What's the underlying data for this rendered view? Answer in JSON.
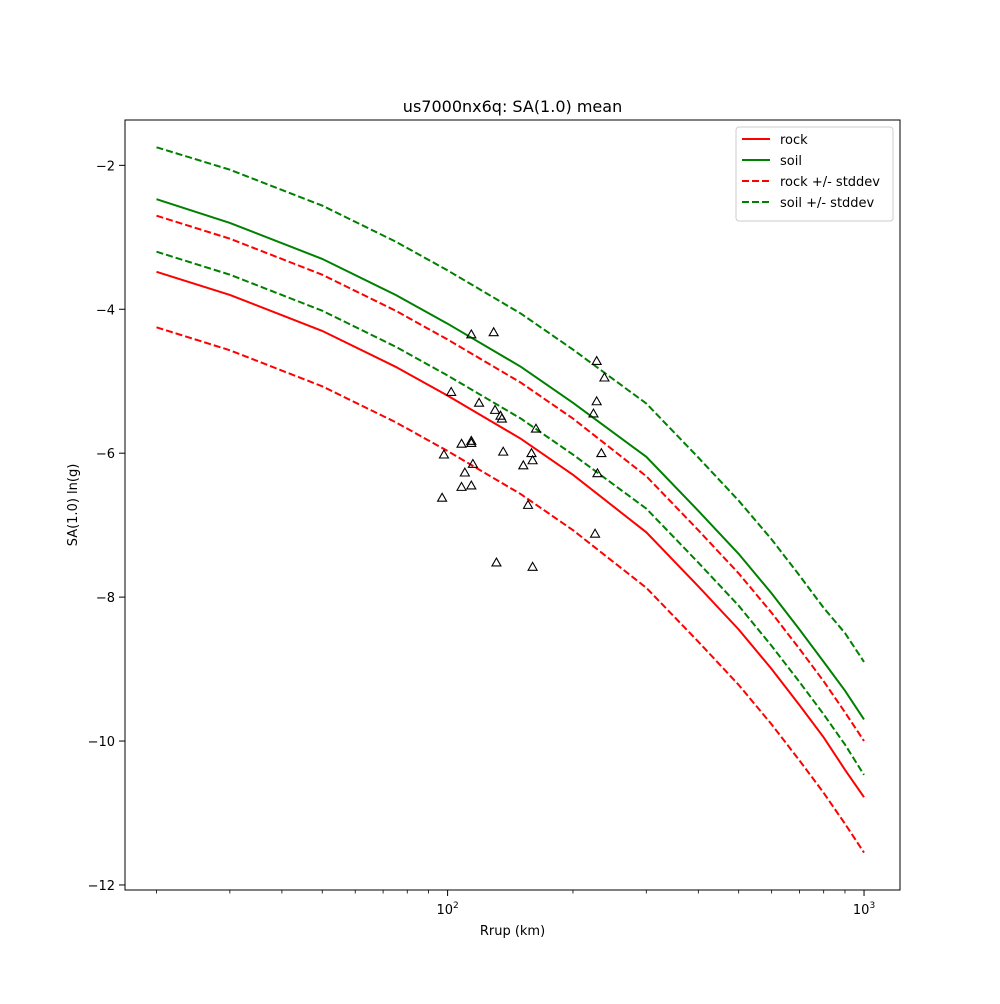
{
  "chart_data": {
    "type": "line",
    "title": "us7000nx6q: SA(1.0) mean",
    "xlabel": "Rrup (km)",
    "ylabel": "SA(1.0) ln(g)",
    "xscale": "log",
    "xlim": [
      16.8,
      1220
    ],
    "ylim": [
      -12.07,
      -1.37
    ],
    "x_ticks": [
      {
        "value": 100,
        "base": "10",
        "exp": "2"
      },
      {
        "value": 1000,
        "base": "10",
        "exp": "3"
      }
    ],
    "y_ticks": [
      {
        "value": -2,
        "label": "−2"
      },
      {
        "value": -4,
        "label": "−4"
      },
      {
        "value": -6,
        "label": "−6"
      },
      {
        "value": -8,
        "label": "−8"
      },
      {
        "value": -10,
        "label": "−10"
      },
      {
        "value": -12,
        "label": "−12"
      }
    ],
    "grid": false,
    "legend_position": "top-right",
    "series": [
      {
        "name": "rock",
        "color": "#ff0000",
        "style": "solid",
        "x": [
          20,
          30,
          50,
          75,
          100,
          150,
          200,
          300,
          400,
          500,
          600,
          700,
          800,
          900,
          1000
        ],
        "y": [
          -3.48,
          -3.8,
          -4.3,
          -4.8,
          -5.2,
          -5.8,
          -6.3,
          -7.1,
          -7.85,
          -8.45,
          -9.0,
          -9.5,
          -9.95,
          -10.4,
          -10.78
        ]
      },
      {
        "name": "soil",
        "color": "#008000",
        "style": "solid",
        "x": [
          20,
          30,
          50,
          75,
          100,
          150,
          200,
          300,
          400,
          500,
          600,
          700,
          800,
          900,
          1000
        ],
        "y": [
          -2.47,
          -2.8,
          -3.3,
          -3.8,
          -4.2,
          -4.8,
          -5.3,
          -6.05,
          -6.8,
          -7.4,
          -7.95,
          -8.45,
          -8.9,
          -9.3,
          -9.7
        ]
      },
      {
        "name": "rock +/- stddev",
        "color": "#ff0000",
        "style": "dashed",
        "x": [
          20,
          30,
          50,
          75,
          100,
          150,
          200,
          300,
          400,
          500,
          600,
          700,
          800,
          900,
          1000
        ],
        "y": [
          -2.7,
          -3.02,
          -3.52,
          -4.02,
          -4.42,
          -5.02,
          -5.52,
          -6.32,
          -7.07,
          -7.67,
          -8.22,
          -8.72,
          -9.17,
          -9.6,
          -10.0
        ]
      },
      {
        "color": "#ff0000",
        "style": "dashed",
        "x": [
          20,
          30,
          50,
          75,
          100,
          150,
          200,
          300,
          400,
          500,
          600,
          700,
          800,
          900,
          1000
        ],
        "y": [
          -4.25,
          -4.57,
          -5.07,
          -5.57,
          -5.97,
          -6.57,
          -7.07,
          -7.87,
          -8.62,
          -9.22,
          -9.77,
          -10.27,
          -10.72,
          -11.15,
          -11.55
        ]
      },
      {
        "name": "soil +/- stddev",
        "color": "#008000",
        "style": "dashed",
        "x": [
          20,
          30,
          50,
          75,
          100,
          150,
          200,
          300,
          400,
          500,
          600,
          700,
          800,
          900,
          1000
        ],
        "y": [
          -1.75,
          -2.06,
          -2.56,
          -3.06,
          -3.46,
          -4.06,
          -4.56,
          -5.31,
          -6.06,
          -6.66,
          -7.2,
          -7.7,
          -8.15,
          -8.5,
          -8.9
        ]
      },
      {
        "color": "#008000",
        "style": "dashed",
        "x": [
          20,
          30,
          50,
          75,
          100,
          150,
          200,
          300,
          400,
          500,
          600,
          700,
          800,
          900,
          1000
        ],
        "y": [
          -3.2,
          -3.52,
          -4.02,
          -4.52,
          -4.92,
          -5.52,
          -6.02,
          -6.77,
          -7.52,
          -8.12,
          -8.68,
          -9.18,
          -9.63,
          -10.05,
          -10.47
        ]
      }
    ],
    "observations": {
      "marker": "triangle",
      "color": "#000000",
      "points": [
        [
          114,
          -4.35
        ],
        [
          129,
          -4.32
        ],
        [
          102,
          -5.15
        ],
        [
          119,
          -5.3
        ],
        [
          130,
          -5.4
        ],
        [
          134,
          -5.48
        ],
        [
          135,
          -5.52
        ],
        [
          114,
          -5.83
        ],
        [
          114,
          -5.86
        ],
        [
          108,
          -5.87
        ],
        [
          98,
          -6.02
        ],
        [
          136,
          -5.98
        ],
        [
          115,
          -6.15
        ],
        [
          110,
          -6.27
        ],
        [
          108,
          -6.47
        ],
        [
          114,
          -6.45
        ],
        [
          97,
          -6.62
        ],
        [
          152,
          -6.17
        ],
        [
          159,
          -6.0
        ],
        [
          160,
          -6.1
        ],
        [
          163,
          -5.66
        ],
        [
          156,
          -6.72
        ],
        [
          131,
          -7.52
        ],
        [
          160,
          -7.58
        ],
        [
          228,
          -4.72
        ],
        [
          228,
          -5.28
        ],
        [
          224,
          -5.45
        ],
        [
          238,
          -4.95
        ],
        [
          234,
          -6.0
        ],
        [
          229,
          -6.28
        ],
        [
          226,
          -7.12
        ]
      ]
    }
  }
}
